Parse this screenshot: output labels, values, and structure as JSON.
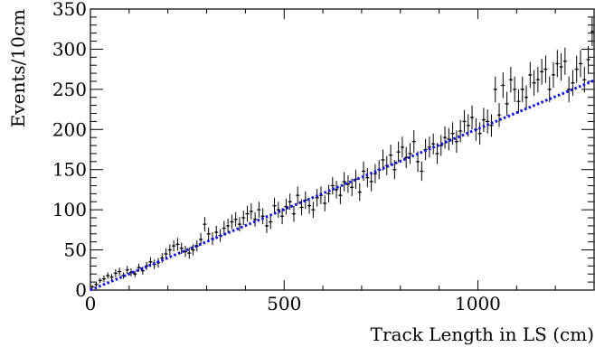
{
  "chart_data": {
    "type": "scatter",
    "title": "",
    "xlabel": "Track Length in LS (cm)",
    "ylabel": "Events/10cm",
    "xlim": [
      0,
      1300
    ],
    "ylim": [
      0,
      350
    ],
    "x_ticks": [
      0,
      500,
      1000
    ],
    "y_ticks": [
      0,
      50,
      100,
      150,
      200,
      250,
      300,
      350
    ],
    "x_tick_labels": [
      "0",
      "500",
      "1000"
    ],
    "y_tick_labels": [
      "0",
      "50",
      "100",
      "150",
      "200",
      "250",
      "300",
      "350"
    ],
    "grid": false,
    "legend": "none",
    "series": [
      {
        "kind": "errorbar-points",
        "color": "#000000",
        "x": [
          5,
          15,
          25,
          35,
          45,
          55,
          65,
          75,
          85,
          95,
          105,
          115,
          125,
          135,
          145,
          155,
          165,
          175,
          185,
          195,
          205,
          215,
          225,
          235,
          245,
          255,
          265,
          275,
          285,
          295,
          305,
          315,
          325,
          335,
          345,
          355,
          365,
          375,
          385,
          395,
          405,
          415,
          425,
          435,
          445,
          455,
          465,
          475,
          485,
          495,
          505,
          515,
          525,
          535,
          545,
          555,
          565,
          575,
          585,
          595,
          605,
          615,
          625,
          635,
          645,
          655,
          665,
          675,
          685,
          695,
          705,
          715,
          725,
          735,
          745,
          755,
          765,
          775,
          785,
          795,
          805,
          815,
          825,
          835,
          845,
          855,
          865,
          875,
          885,
          895,
          905,
          915,
          925,
          935,
          945,
          955,
          965,
          975,
          985,
          995,
          1005,
          1015,
          1025,
          1035,
          1045,
          1055,
          1065,
          1075,
          1085,
          1095,
          1105,
          1115,
          1125,
          1135,
          1145,
          1155,
          1165,
          1175,
          1185,
          1195,
          1205,
          1215,
          1225,
          1235,
          1245,
          1255,
          1265,
          1275,
          1285,
          1295
        ],
        "y": [
          4,
          7,
          12,
          14,
          18,
          16,
          21,
          23,
          18,
          25,
          22,
          20,
          28,
          24,
          30,
          35,
          32,
          34,
          40,
          45,
          50,
          55,
          57,
          52,
          48,
          46,
          50,
          55,
          63,
          82,
          70,
          64,
          72,
          68,
          77,
          80,
          85,
          88,
          82,
          90,
          95,
          98,
          88,
          100,
          92,
          80,
          85,
          105,
          100,
          92,
          104,
          110,
          95,
          118,
          103,
          112,
          105,
          100,
          115,
          118,
          108,
          120,
          130,
          125,
          118,
          135,
          132,
          128,
          138,
          122,
          148,
          140,
          135,
          145,
          150,
          162,
          155,
          168,
          150,
          172,
          178,
          165,
          170,
          185,
          160,
          148,
          175,
          178,
          182,
          170,
          180,
          190,
          188,
          195,
          185,
          198,
          210,
          205,
          215,
          200,
          195,
          212,
          210,
          205,
          250,
          218,
          255,
          232,
          262,
          250,
          235,
          250,
          240,
          268,
          258,
          262,
          272,
          275,
          250,
          268,
          282,
          278,
          285,
          250,
          258,
          275,
          282,
          262,
          287,
          322
        ],
        "err": [
          2,
          3,
          3,
          4,
          4,
          4,
          5,
          5,
          4,
          5,
          5,
          4,
          5,
          5,
          5,
          6,
          6,
          6,
          6,
          7,
          7,
          7,
          8,
          7,
          7,
          7,
          7,
          7,
          8,
          9,
          8,
          8,
          8,
          8,
          9,
          9,
          9,
          9,
          9,
          9,
          10,
          10,
          9,
          10,
          10,
          9,
          9,
          10,
          10,
          10,
          10,
          10,
          10,
          11,
          10,
          11,
          10,
          10,
          11,
          11,
          10,
          11,
          11,
          11,
          11,
          12,
          11,
          11,
          12,
          11,
          12,
          12,
          12,
          12,
          12,
          13,
          12,
          13,
          12,
          13,
          13,
          13,
          13,
          14,
          13,
          12,
          13,
          13,
          13,
          13,
          13,
          14,
          14,
          14,
          14,
          14,
          14,
          14,
          15,
          14,
          14,
          15,
          15,
          14,
          16,
          15,
          16,
          15,
          16,
          16,
          15,
          16,
          15,
          16,
          16,
          16,
          16,
          17,
          16,
          16,
          17,
          17,
          17,
          16,
          16,
          17,
          17,
          16,
          17,
          18
        ]
      },
      {
        "kind": "fit-line",
        "color": "#1010e0",
        "style": "dotted",
        "x": [
          0,
          1300
        ],
        "y": [
          0,
          261
        ]
      }
    ]
  }
}
